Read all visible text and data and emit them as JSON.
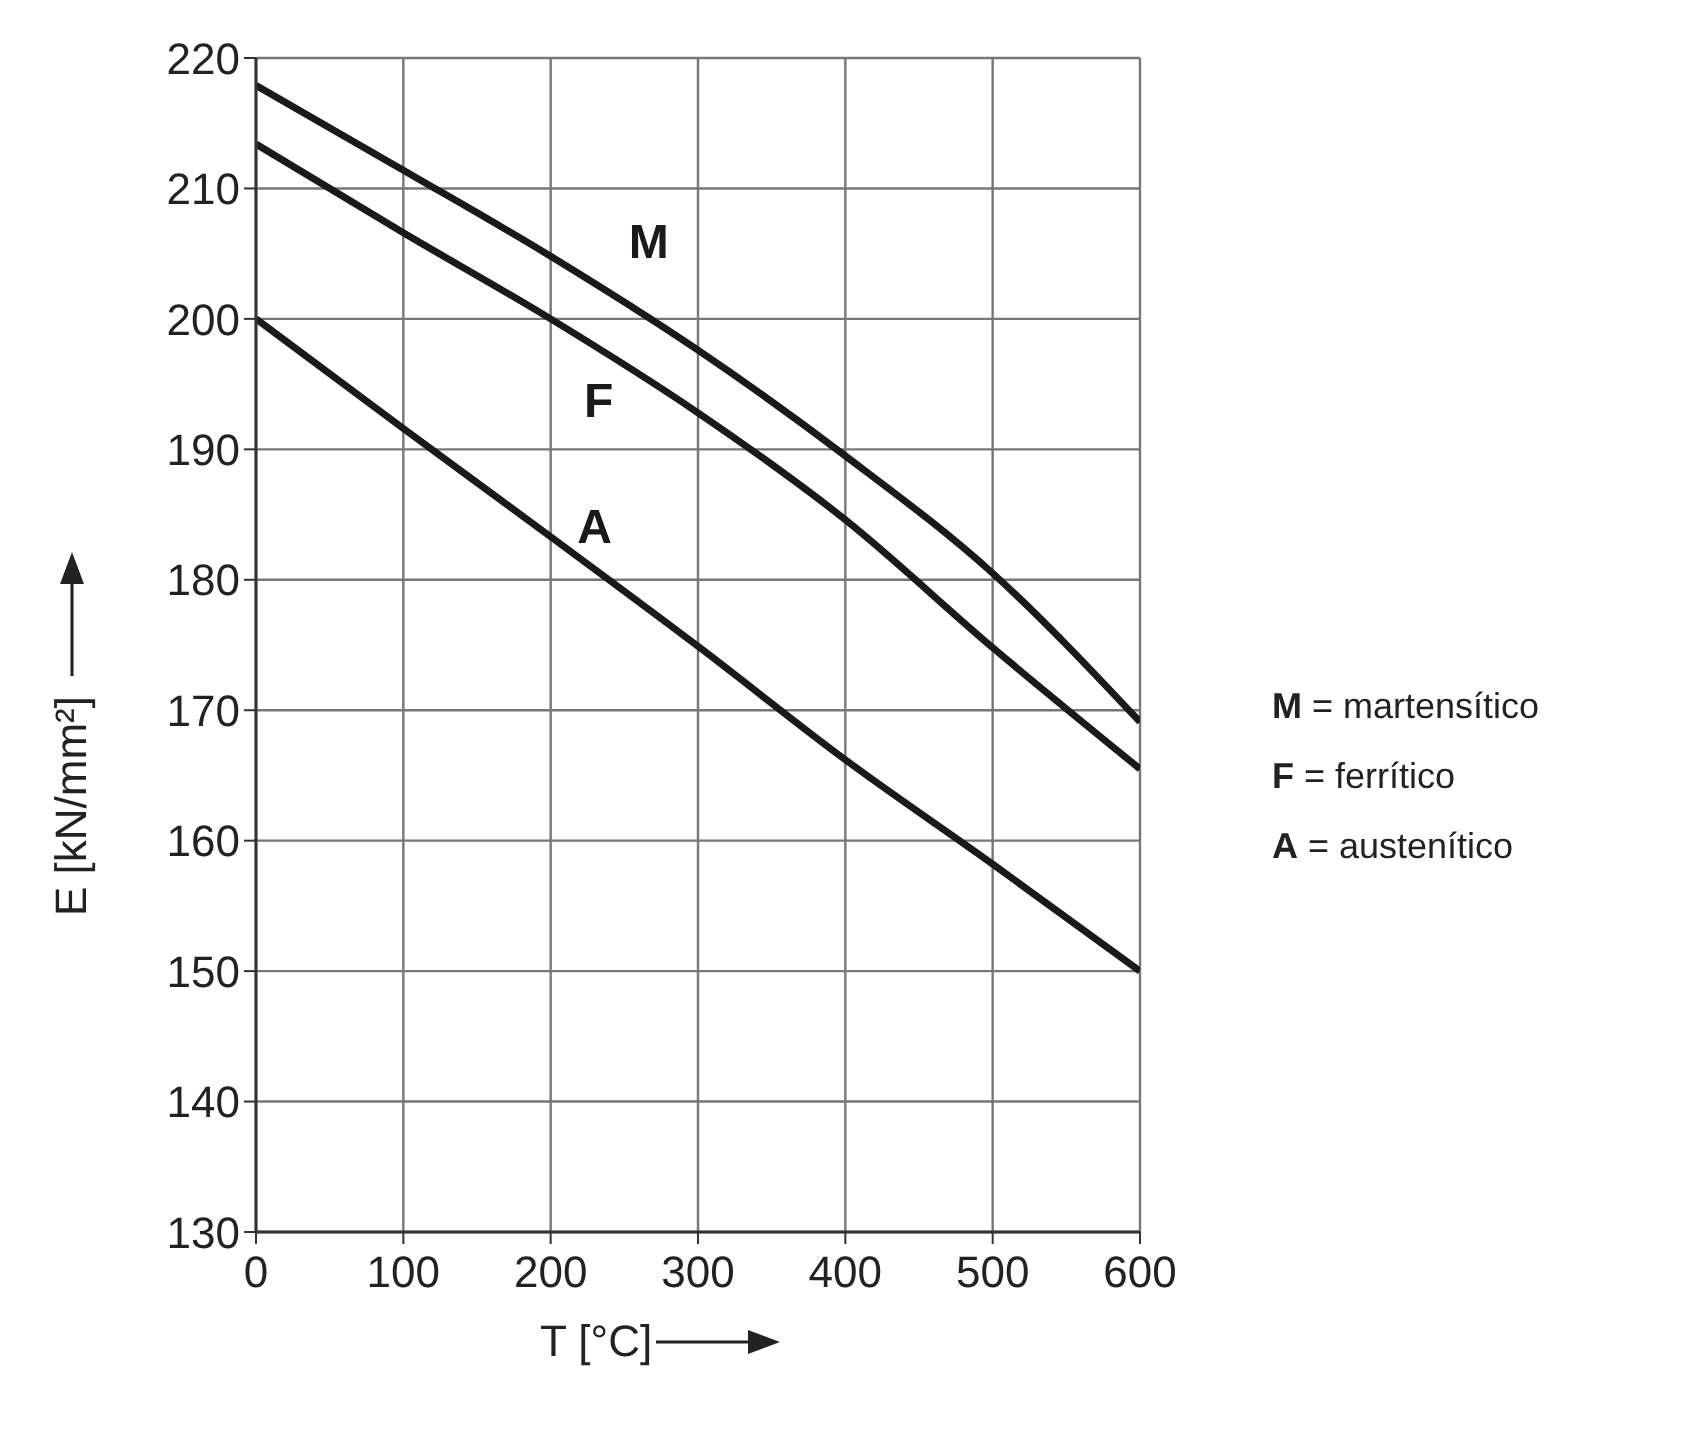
{
  "chart_data": {
    "type": "line",
    "xlabel": "T [°C]",
    "ylabel": "E [kN/mm²]",
    "x": [
      0,
      100,
      200,
      300,
      400,
      500,
      600
    ],
    "series": [
      {
        "name": "M",
        "color": "#1a1a1a",
        "values": [
          217.9,
          211.4,
          204.8,
          197.6,
          189.5,
          180.5,
          169.1
        ]
      },
      {
        "name": "F",
        "color": "#1a1a1a",
        "values": [
          213.4,
          206.6,
          200,
          192.8,
          184.6,
          174.8,
          165.5
        ]
      },
      {
        "name": "A",
        "color": "#1a1a1a",
        "values": [
          200,
          191.6,
          183.3,
          174.9,
          166.2,
          158.2,
          150
        ]
      }
    ],
    "xlim": [
      0,
      600
    ],
    "xticks": [
      0,
      100,
      200,
      300,
      400,
      500,
      600
    ],
    "ylim": [
      130,
      220
    ],
    "yticks": [
      130,
      140,
      150,
      160,
      170,
      180,
      190,
      200,
      210,
      220
    ],
    "grid": true,
    "marker": "none",
    "line_style": "solid",
    "annotations": [
      "M = martensítico",
      "F = ferrítico",
      "A = austenítico"
    ]
  }
}
